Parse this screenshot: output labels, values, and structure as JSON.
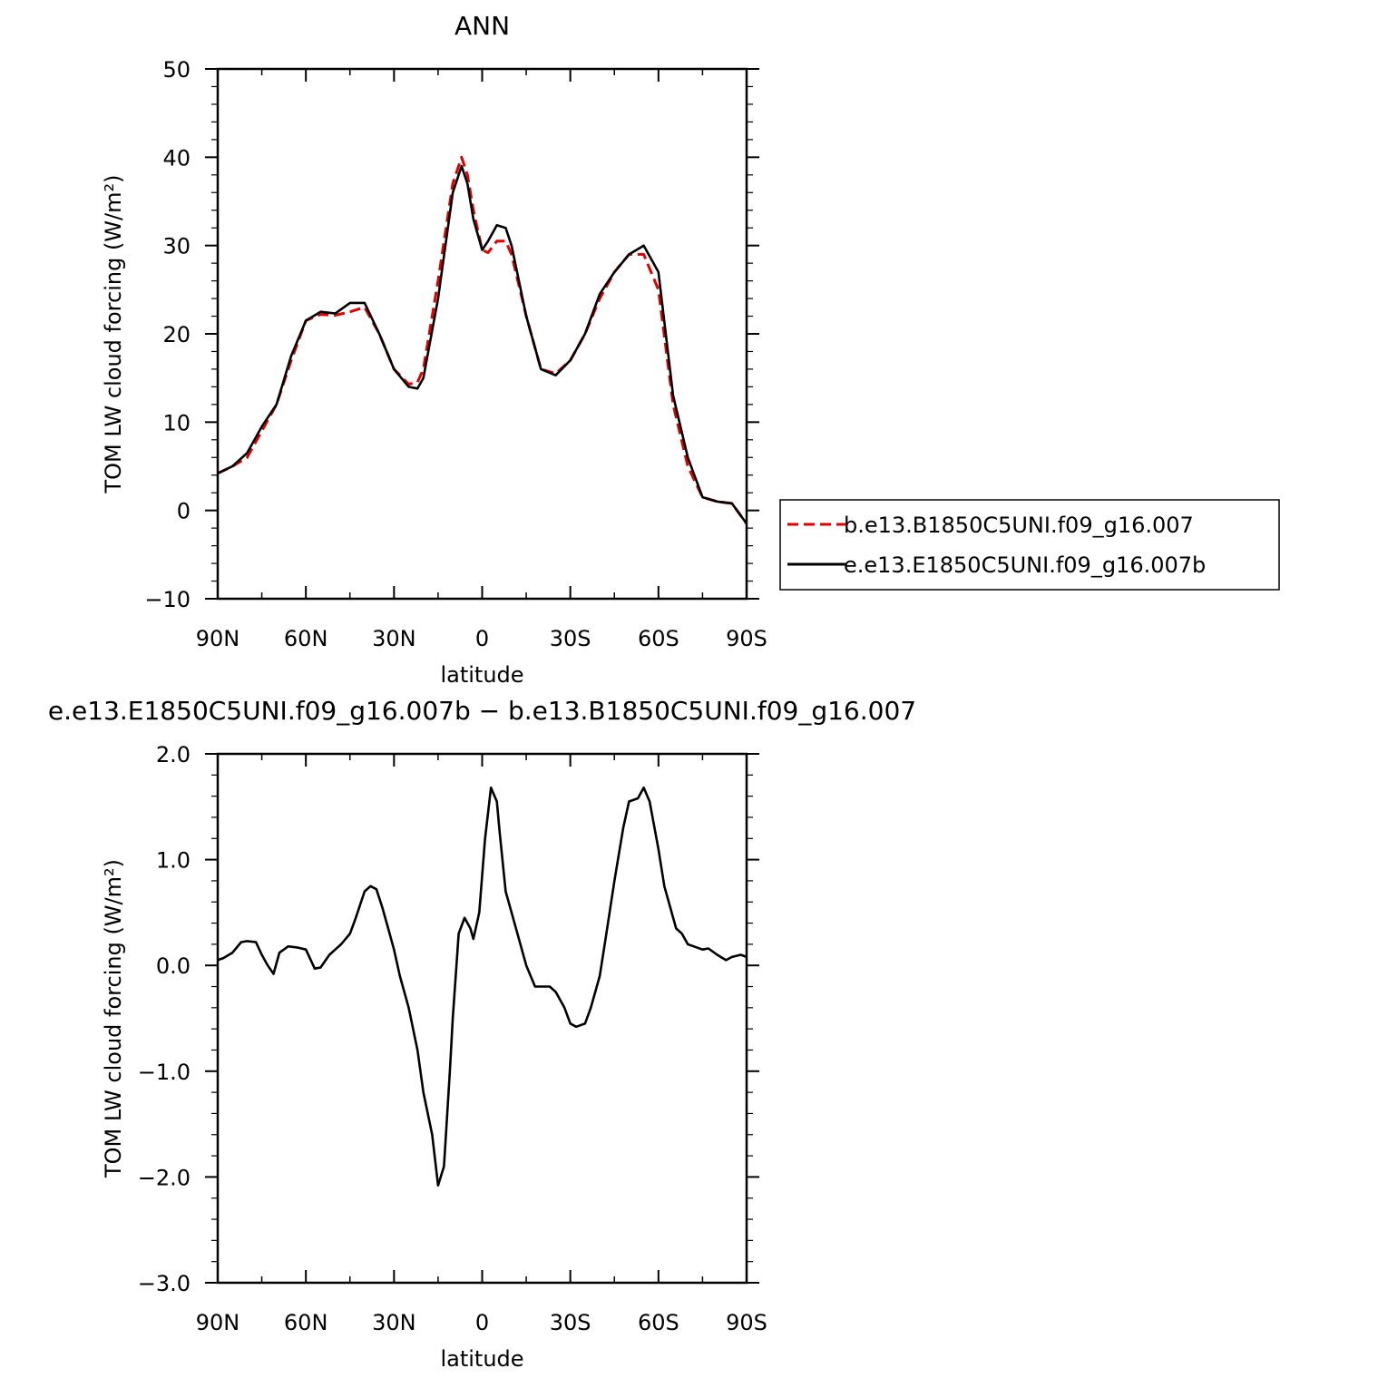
{
  "chart_data": [
    {
      "type": "line",
      "title": "ANN",
      "xlabel": "latitude",
      "ylabel": "TOM LW cloud forcing (W/m²)",
      "xlim": [
        90,
        -90
      ],
      "ylim": [
        -10,
        50
      ],
      "x_ticks": [
        {
          "value": 90,
          "label": "90N"
        },
        {
          "value": 60,
          "label": "60N"
        },
        {
          "value": 30,
          "label": "30N"
        },
        {
          "value": 0,
          "label": "0"
        },
        {
          "value": -30,
          "label": "30S"
        },
        {
          "value": -60,
          "label": "60S"
        },
        {
          "value": -90,
          "label": "90S"
        }
      ],
      "y_ticks": [
        {
          "value": 50,
          "label": "50"
        },
        {
          "value": 40,
          "label": "40"
        },
        {
          "value": 30,
          "label": "30"
        },
        {
          "value": 20,
          "label": "20"
        },
        {
          "value": 10,
          "label": "10"
        },
        {
          "value": 0,
          "label": "0"
        },
        {
          "value": -10,
          "label": "−10"
        }
      ],
      "legend": "right",
      "series": [
        {
          "name": "b.e13.B1850C5UNI.f09_g16.007",
          "color": "#e00000",
          "dash": true,
          "x": [
            90,
            85,
            80,
            75,
            70,
            65,
            60,
            55,
            50,
            45,
            40,
            35,
            30,
            25,
            22,
            20,
            15,
            10,
            7,
            5,
            3,
            0,
            -2,
            -5,
            -8,
            -10,
            -15,
            -20,
            -25,
            -30,
            -35,
            -40,
            -45,
            -50,
            -55,
            -60,
            -65,
            -70,
            -75,
            -80,
            -85,
            -90
          ],
          "y": [
            4.2,
            5,
            6,
            9,
            12,
            17,
            21.5,
            22.2,
            22.1,
            22.5,
            23,
            20,
            16,
            14.3,
            14.5,
            16,
            26,
            37,
            40,
            38,
            34,
            29.5,
            29.2,
            30.5,
            30.5,
            29,
            22,
            16,
            15.5,
            17,
            20,
            24,
            27,
            29,
            29,
            25,
            12,
            5,
            1.5,
            1,
            0.8,
            -1.5
          ]
        },
        {
          "name": "e.e13.E1850C5UNI.f09_g16.007b",
          "color": "#000000",
          "dash": false,
          "x": [
            90,
            85,
            80,
            75,
            70,
            65,
            60,
            55,
            50,
            45,
            40,
            35,
            30,
            25,
            22,
            20,
            15,
            10,
            7,
            5,
            3,
            0,
            -2,
            -5,
            -8,
            -10,
            -15,
            -20,
            -25,
            -30,
            -35,
            -40,
            -45,
            -50,
            -55,
            -60,
            -65,
            -70,
            -75,
            -80,
            -85,
            -90
          ],
          "y": [
            4.2,
            5,
            6.5,
            9.5,
            12,
            17.5,
            21.5,
            22.5,
            22.3,
            23.5,
            23.5,
            20,
            16,
            14,
            13.8,
            15,
            24,
            36,
            39,
            37,
            33,
            29.5,
            30.5,
            32.3,
            32,
            30,
            22,
            16,
            15.3,
            17,
            20,
            24.5,
            27,
            29,
            30,
            27,
            13,
            6,
            1.5,
            1,
            0.8,
            -1.5
          ]
        }
      ]
    },
    {
      "type": "line",
      "title": "e.e13.E1850C5UNI.f09_g16.007b − b.e13.B1850C5UNI.f09_g16.007",
      "xlabel": "latitude",
      "ylabel": "TOM LW cloud forcing (W/m²)",
      "xlim": [
        90,
        -90
      ],
      "ylim": [
        -3.0,
        2.0
      ],
      "x_ticks": [
        {
          "value": 90,
          "label": "90N"
        },
        {
          "value": 60,
          "label": "60N"
        },
        {
          "value": 30,
          "label": "30N"
        },
        {
          "value": 0,
          "label": "0"
        },
        {
          "value": -30,
          "label": "30S"
        },
        {
          "value": -60,
          "label": "60S"
        },
        {
          "value": -90,
          "label": "90S"
        }
      ],
      "y_ticks": [
        {
          "value": 2.0,
          "label": "2.0"
        },
        {
          "value": 1.0,
          "label": "1.0"
        },
        {
          "value": 0.0,
          "label": "0.0"
        },
        {
          "value": -1.0,
          "label": "−1.0"
        },
        {
          "value": -2.0,
          "label": "−2.0"
        },
        {
          "value": -3.0,
          "label": "−3.0"
        }
      ],
      "series": [
        {
          "color": "#000000",
          "dash": false,
          "x": [
            90,
            88,
            85,
            82,
            80,
            77,
            75,
            73,
            71,
            69,
            66,
            63,
            60,
            57,
            55,
            52,
            50,
            48,
            45,
            43,
            40,
            38,
            36,
            34,
            32,
            30,
            28,
            25,
            22,
            20,
            17,
            15,
            13,
            11,
            10,
            8,
            6,
            4,
            3,
            1,
            -1,
            -3,
            -5,
            -6,
            -8,
            -10,
            -12,
            -15,
            -18,
            -20,
            -23,
            -25,
            -28,
            -30,
            -32,
            -35,
            -37,
            -40,
            -42,
            -45,
            -48,
            -50,
            -53,
            -55,
            -57,
            -60,
            -62,
            -64,
            -66,
            -68,
            -70,
            -72,
            -75,
            -77,
            -80,
            -83,
            -85,
            -88,
            -90
          ],
          "y": [
            0.05,
            0.07,
            0.12,
            0.22,
            0.23,
            0.22,
            0.1,
            0.0,
            -0.08,
            0.12,
            0.18,
            0.17,
            0.15,
            -0.03,
            -0.02,
            0.1,
            0.15,
            0.2,
            0.3,
            0.45,
            0.7,
            0.75,
            0.72,
            0.55,
            0.35,
            0.15,
            -0.1,
            -0.4,
            -0.8,
            -1.2,
            -1.6,
            -2.08,
            -1.9,
            -1.0,
            -0.5,
            0.3,
            0.45,
            0.35,
            0.25,
            0.5,
            1.2,
            1.68,
            1.55,
            1.25,
            0.7,
            0.5,
            0.3,
            0.0,
            -0.2,
            -0.2,
            -0.2,
            -0.25,
            -0.4,
            -0.55,
            -0.58,
            -0.55,
            -0.4,
            -0.1,
            0.25,
            0.8,
            1.3,
            1.55,
            1.58,
            1.68,
            1.55,
            1.1,
            0.75,
            0.55,
            0.35,
            0.3,
            0.2,
            0.18,
            0.15,
            0.16,
            0.1,
            0.05,
            0.08,
            0.1,
            0.08
          ]
        }
      ]
    }
  ]
}
